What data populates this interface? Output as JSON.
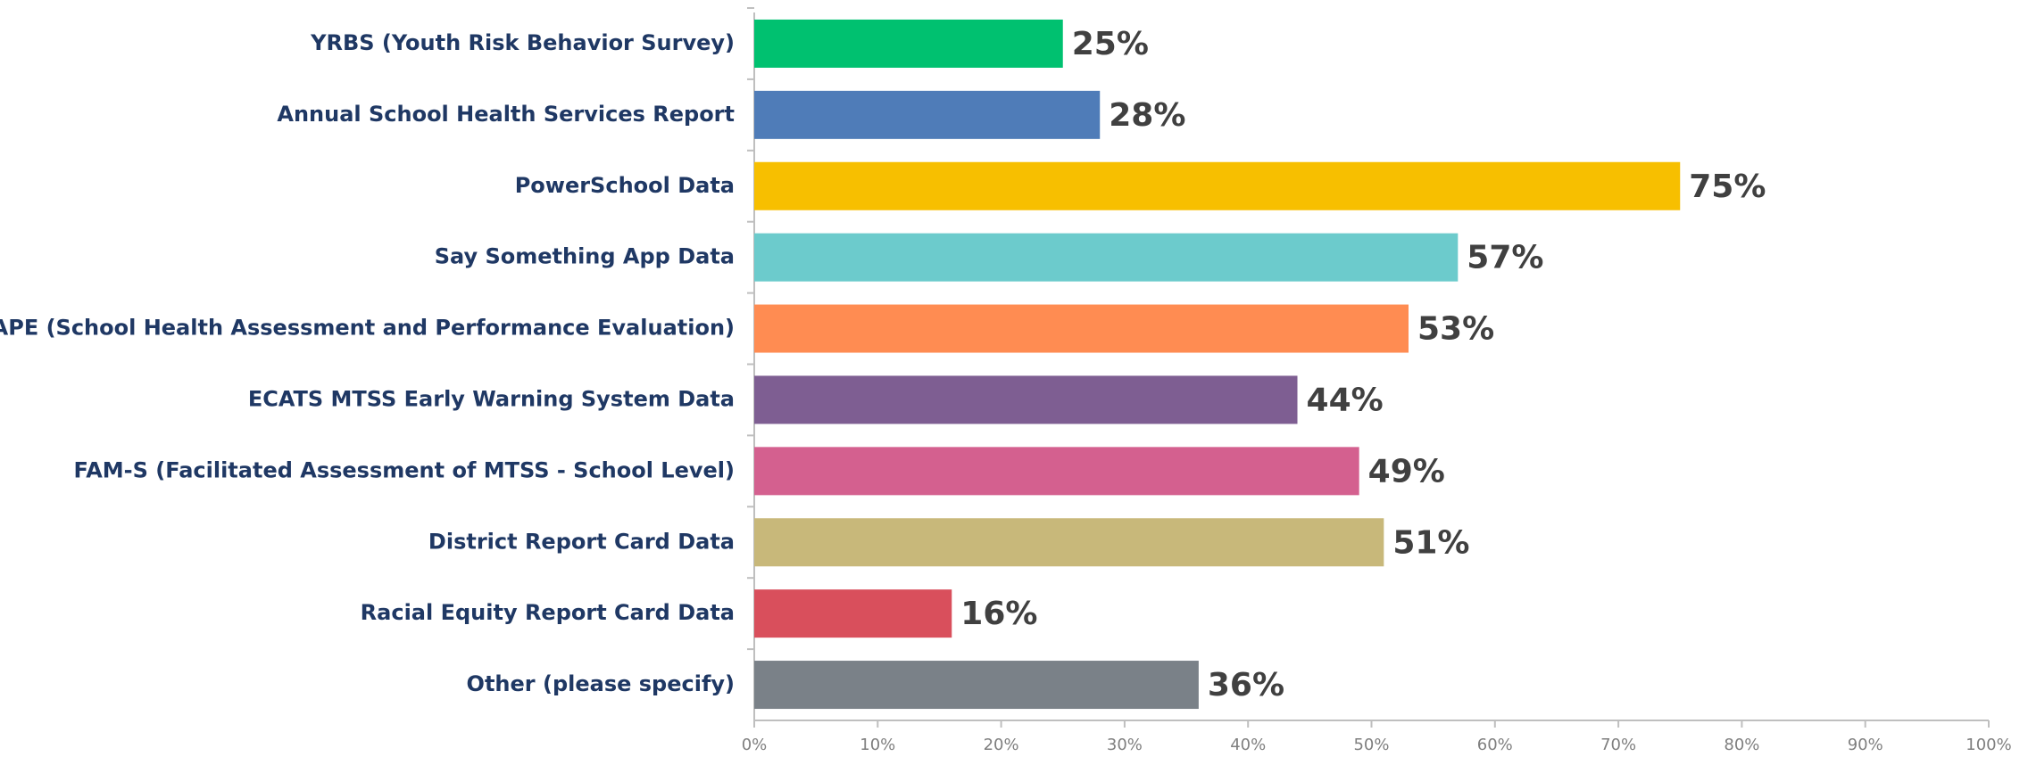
{
  "chart_data": {
    "type": "bar",
    "orientation": "horizontal",
    "categories": [
      "YRBS (Youth Risk Behavior Survey)",
      "Annual School Health Services Report",
      "PowerSchool Data",
      "Say Something App Data",
      "SHAPE (School Health Assessment and Performance Evaluation)",
      "ECATS MTSS Early Warning System Data",
      "FAM-S (Facilitated Assessment of MTSS - School Level)",
      "District Report Card Data",
      "Racial Equity Report Card Data",
      "Other (please specify)"
    ],
    "values": [
      25,
      28,
      75,
      57,
      53,
      44,
      49,
      51,
      16,
      36
    ],
    "value_labels": [
      "25%",
      "28%",
      "75%",
      "57%",
      "53%",
      "44%",
      "49%",
      "51%",
      "16%",
      "36%"
    ],
    "colors": [
      "#00c170",
      "#4f7cb8",
      "#f7bf00",
      "#6ccbcc",
      "#ff8c52",
      "#7e5e92",
      "#d4608f",
      "#c8b87a",
      "#d94f5c",
      "#7a8188"
    ],
    "xlim": [
      0,
      100
    ],
    "xticks": [
      {
        "value": 0,
        "label": "0%"
      },
      {
        "value": 10,
        "label": "10%"
      },
      {
        "value": 20,
        "label": "20%"
      },
      {
        "value": 30,
        "label": "30%"
      },
      {
        "value": 40,
        "label": "40%"
      },
      {
        "value": 50,
        "label": "50%"
      },
      {
        "value": 60,
        "label": "60%"
      },
      {
        "value": 70,
        "label": "70%"
      },
      {
        "value": 80,
        "label": "80%"
      },
      {
        "value": 90,
        "label": "90%"
      },
      {
        "value": 100,
        "label": "100%"
      }
    ],
    "grid": false
  }
}
